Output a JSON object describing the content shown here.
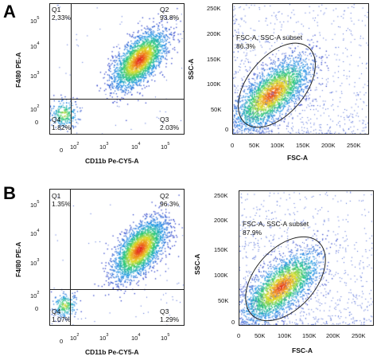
{
  "panels": [
    {
      "letter": "A",
      "left_plot": {
        "xlabel": "CD11b Pe-CY5-A",
        "ylabel": "F4/80 PE-A",
        "quadrants": [
          {
            "name": "Q1",
            "value": "2.33%"
          },
          {
            "name": "Q2",
            "value": "93.8%"
          },
          {
            "name": "Q3",
            "value": "2.03%"
          },
          {
            "name": "Q4",
            "value": "1.82%"
          }
        ],
        "x_ticks": [
          {
            "base": "0",
            "exp": ""
          },
          {
            "base": "10",
            "exp": "2"
          },
          {
            "base": "10",
            "exp": "3"
          },
          {
            "base": "10",
            "exp": "4"
          },
          {
            "base": "10",
            "exp": "5"
          }
        ],
        "y_ticks": [
          {
            "base": "0",
            "exp": ""
          },
          {
            "base": "10",
            "exp": "2"
          },
          {
            "base": "10",
            "exp": "3"
          },
          {
            "base": "10",
            "exp": "4"
          },
          {
            "base": "10",
            "exp": "5"
          }
        ]
      },
      "right_plot": {
        "xlabel": "FSC-A",
        "ylabel": "SSC-A",
        "gate_name": "FSC-A, SSC-A subset",
        "gate_value": "86.3%",
        "x_ticks": [
          "0",
          "50K",
          "100K",
          "150K",
          "200K",
          "250K"
        ],
        "y_ticks": [
          "0",
          "50K",
          "100K",
          "150K",
          "200K",
          "250K"
        ]
      }
    },
    {
      "letter": "B",
      "left_plot": {
        "xlabel": "CD11b Pe-CY5-A",
        "ylabel": "F4/80 PE-A",
        "quadrants": [
          {
            "name": "Q1",
            "value": "1.35%"
          },
          {
            "name": "Q2",
            "value": "96.3%"
          },
          {
            "name": "Q3",
            "value": "1.29%"
          },
          {
            "name": "Q4",
            "value": "1.07%"
          }
        ],
        "x_ticks": [
          {
            "base": "0",
            "exp": ""
          },
          {
            "base": "10",
            "exp": "2"
          },
          {
            "base": "10",
            "exp": "3"
          },
          {
            "base": "10",
            "exp": "4"
          },
          {
            "base": "10",
            "exp": "5"
          }
        ],
        "y_ticks": [
          {
            "base": "0",
            "exp": ""
          },
          {
            "base": "10",
            "exp": "2"
          },
          {
            "base": "10",
            "exp": "3"
          },
          {
            "base": "10",
            "exp": "4"
          },
          {
            "base": "10",
            "exp": "5"
          }
        ]
      },
      "right_plot": {
        "xlabel": "FSC-A",
        "ylabel": "SSC-A",
        "gate_name": "FSC-A, SSC-A subset",
        "gate_value": "87.9%",
        "x_ticks": [
          "0",
          "50K",
          "100K",
          "150K",
          "200K",
          "250K"
        ],
        "y_ticks": [
          "0",
          "50K",
          "100K",
          "150K",
          "200K",
          "250K"
        ]
      }
    }
  ],
  "chart_data": [
    {
      "type": "scatter",
      "panel": "A",
      "xlabel": "CD11b Pe-CY5-A",
      "ylabel": "F4/80 PE-A",
      "x_scale": "biexponential",
      "y_scale": "biexponential",
      "quadrant_gate": {
        "x": 150,
        "y": 150
      },
      "populations": [
        {
          "quadrant": "Q1",
          "percent": 2.33
        },
        {
          "quadrant": "Q2",
          "percent": 93.8,
          "center_x": 3500,
          "center_y": 2500
        },
        {
          "quadrant": "Q3",
          "percent": 2.03
        },
        {
          "quadrant": "Q4",
          "percent": 1.82,
          "center_x": 20,
          "center_y": 10
        }
      ]
    },
    {
      "type": "scatter",
      "panel": "A",
      "xlabel": "FSC-A",
      "ylabel": "SSC-A",
      "xlim": [
        0,
        262144
      ],
      "ylim": [
        0,
        262144
      ],
      "gate": {
        "name": "FSC-A, SSC-A subset",
        "percent": 86.3
      },
      "population_center": {
        "x": 70000,
        "y": 40000
      }
    },
    {
      "type": "scatter",
      "panel": "B",
      "xlabel": "CD11b Pe-CY5-A",
      "ylabel": "F4/80 PE-A",
      "x_scale": "biexponential",
      "y_scale": "biexponential",
      "quadrant_gate": {
        "x": 150,
        "y": 150
      },
      "populations": [
        {
          "quadrant": "Q1",
          "percent": 1.35
        },
        {
          "quadrant": "Q2",
          "percent": 96.3,
          "center_x": 4000,
          "center_y": 2000
        },
        {
          "quadrant": "Q3",
          "percent": 1.29
        },
        {
          "quadrant": "Q4",
          "percent": 1.07,
          "center_x": 20,
          "center_y": 10
        }
      ]
    },
    {
      "type": "scatter",
      "panel": "B",
      "xlabel": "FSC-A",
      "ylabel": "SSC-A",
      "xlim": [
        0,
        262144
      ],
      "ylim": [
        0,
        262144
      ],
      "gate": {
        "name": "FSC-A, SSC-A subset",
        "percent": 87.9
      },
      "population_center": {
        "x": 75000,
        "y": 38000
      }
    }
  ]
}
